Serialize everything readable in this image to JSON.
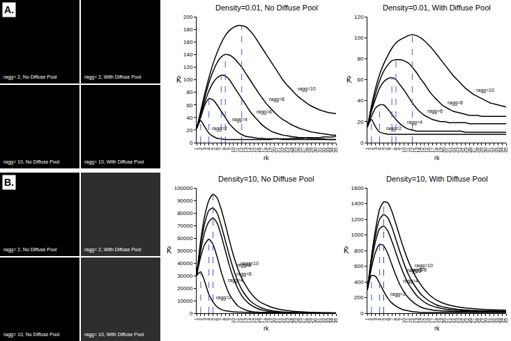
{
  "panels": [
    {
      "label": "A.",
      "image_captions": [
        "ragg= 2, No Diffuse Pool",
        "ragg= 2, With Diffuse Pool",
        "ragg= 10, No Diffuse Pool",
        "ragg= 10, With Diffuse Pool"
      ]
    },
    {
      "label": "B.",
      "image_captions": [
        "ragg= 2, No Diffuse Pool",
        "ragg= 2, With Diffuse Pool",
        "ragg= 10, No Diffuse Pool",
        "ragg= 10, With Diffuse Pool"
      ]
    }
  ],
  "chart_data": [
    {
      "type": "line",
      "title": "Density=0.01, No Diffuse Pool",
      "x_label": "rk",
      "y_label": "K̃",
      "grid": false,
      "x": [
        1,
        2,
        3,
        4,
        5,
        6,
        7,
        8,
        9,
        10,
        11,
        12,
        13,
        14,
        15,
        16,
        17,
        18,
        19,
        20,
        21,
        22,
        23,
        24,
        25,
        26,
        27,
        28,
        29,
        30,
        31,
        32,
        33,
        34,
        35
      ],
      "xlim": [
        1,
        35
      ],
      "xticks": [
        1,
        2,
        3,
        4,
        5,
        6,
        7,
        8,
        9,
        10,
        11,
        12,
        13,
        14,
        15,
        16,
        17,
        18,
        19,
        20,
        21,
        22,
        23,
        24,
        25,
        26,
        27,
        28,
        29,
        30,
        31,
        32,
        33,
        34,
        35
      ],
      "ylim": [
        0,
        200
      ],
      "yticks": [
        0,
        20,
        40,
        60,
        80,
        100,
        120,
        140,
        160,
        180,
        200
      ],
      "series": [
        {
          "name": "ragg=2",
          "color": "#000000",
          "peak": 2,
          "values": [
            22,
            35,
            25,
            15,
            10,
            7,
            6,
            5,
            5,
            5,
            5,
            5,
            5,
            5,
            5,
            5,
            5,
            5,
            5,
            6,
            6,
            6,
            6,
            7,
            7,
            7,
            7,
            8,
            8,
            8,
            8,
            9,
            9,
            9,
            10
          ]
        },
        {
          "name": "ragg=4",
          "color": "#000000",
          "peak": 4,
          "values": [
            22,
            40,
            60,
            70,
            68,
            60,
            50,
            40,
            30,
            23,
            17,
            13,
            10,
            9,
            8,
            7,
            7,
            6,
            6,
            6,
            6,
            5,
            5,
            5,
            5,
            5,
            5,
            5,
            5,
            5,
            5,
            5,
            5,
            5,
            5
          ]
        },
        {
          "name": "ragg=6",
          "color": "#000000",
          "peak": 7,
          "values": [
            22,
            45,
            65,
            82,
            95,
            103,
            107,
            106,
            100,
            90,
            80,
            70,
            60,
            50,
            42,
            35,
            28,
            23,
            19,
            16,
            14,
            12,
            11,
            10,
            9,
            8,
            8,
            7,
            7,
            6,
            6,
            6,
            5,
            5,
            5
          ]
        },
        {
          "name": "ragg=8",
          "color": "#000000",
          "peak": 8,
          "values": [
            22,
            48,
            72,
            95,
            113,
            127,
            136,
            140,
            139,
            135,
            128,
            120,
            110,
            100,
            90,
            80,
            71,
            62,
            55,
            48,
            42,
            37,
            33,
            29,
            26,
            23,
            21,
            19,
            17,
            16,
            15,
            14,
            13,
            12,
            12
          ]
        },
        {
          "name": "ragg=10",
          "color": "#000000",
          "peak": 12,
          "values": [
            22,
            50,
            78,
            103,
            125,
            143,
            158,
            170,
            178,
            183,
            186,
            186,
            184,
            178,
            170,
            160,
            150,
            140,
            130,
            120,
            110,
            100,
            92,
            85,
            78,
            72,
            67,
            62,
            58,
            55,
            52,
            50,
            48,
            47,
            46
          ]
        }
      ]
    },
    {
      "type": "line",
      "title": "Density=0.01, With Diffuse Pool",
      "x_label": "rk",
      "y_label": "K̃",
      "grid": false,
      "x": [
        1,
        2,
        3,
        4,
        5,
        6,
        7,
        8,
        9,
        10,
        11,
        12,
        13,
        14,
        15,
        16,
        17,
        18,
        19,
        20,
        21,
        22,
        23,
        24,
        25,
        26,
        27,
        28,
        29,
        30,
        31,
        32,
        33,
        34,
        35
      ],
      "xlim": [
        1,
        35
      ],
      "xticks": [
        1,
        2,
        3,
        4,
        5,
        6,
        7,
        8,
        9,
        10,
        11,
        12,
        13,
        14,
        15,
        16,
        17,
        18,
        19,
        20,
        21,
        22,
        23,
        24,
        25,
        26,
        27,
        28,
        29,
        30,
        31,
        32,
        33,
        34,
        35
      ],
      "ylim": [
        0,
        120
      ],
      "yticks": [
        0,
        20,
        40,
        60,
        80,
        100,
        120
      ],
      "series": [
        {
          "name": "ragg=2",
          "color": "#000000",
          "peak": 2,
          "values": [
            15,
            22,
            15,
            10,
            9,
            8,
            8,
            8,
            8,
            8,
            8,
            8,
            8,
            8,
            8,
            8,
            8,
            8,
            8,
            8,
            8,
            8,
            8,
            8,
            8,
            8,
            8,
            8,
            8,
            8,
            8,
            8,
            8,
            8,
            8
          ]
        },
        {
          "name": "ragg=4",
          "color": "#000000",
          "peak": 4,
          "values": [
            15,
            25,
            33,
            36,
            36,
            32,
            27,
            22,
            18,
            15,
            13,
            12,
            11,
            11,
            11,
            11,
            11,
            11,
            11,
            11,
            11,
            11,
            11,
            11,
            10,
            10,
            10,
            10,
            10,
            10,
            10,
            10,
            10,
            10,
            10
          ]
        },
        {
          "name": "ragg=6",
          "color": "#000000",
          "peak": 7,
          "values": [
            15,
            30,
            42,
            52,
            58,
            61,
            62,
            60,
            55,
            50,
            44,
            38,
            33,
            29,
            26,
            24,
            22,
            21,
            20,
            20,
            19,
            19,
            19,
            19,
            19,
            18,
            18,
            18,
            18,
            18,
            18,
            18,
            18,
            18,
            18
          ]
        },
        {
          "name": "ragg=8",
          "color": "#000000",
          "peak": 8,
          "values": [
            15,
            32,
            47,
            59,
            68,
            74,
            78,
            79,
            79,
            78,
            76,
            72,
            67,
            61,
            56,
            50,
            45,
            41,
            37,
            34,
            32,
            30,
            29,
            28,
            27,
            26,
            26,
            26,
            25,
            25,
            25,
            25,
            25,
            25,
            25
          ]
        },
        {
          "name": "ragg=10",
          "color": "#000000",
          "peak": 12,
          "values": [
            15,
            35,
            52,
            65,
            75,
            83,
            90,
            95,
            98,
            100,
            102,
            103,
            102,
            100,
            97,
            93,
            89,
            84,
            79,
            74,
            69,
            64,
            60,
            56,
            52,
            49,
            46,
            44,
            42,
            40,
            38,
            37,
            36,
            35,
            34
          ]
        }
      ]
    },
    {
      "type": "line",
      "title": "Density=10, No Diffuse Pool",
      "x_label": "rk",
      "y_label": "K̃",
      "grid": false,
      "x": [
        1,
        2,
        3,
        4,
        5,
        6,
        7,
        8,
        9,
        10,
        11,
        12,
        13,
        14,
        15,
        16,
        17,
        18,
        19,
        20,
        21,
        22,
        23,
        24,
        25,
        26,
        27,
        28,
        29,
        30,
        31,
        32,
        33,
        34,
        35
      ],
      "xlim": [
        1,
        35
      ],
      "xticks": [
        1,
        2,
        3,
        4,
        5,
        6,
        7,
        8,
        9,
        10,
        11,
        12,
        13,
        14,
        15,
        16,
        17,
        18,
        19,
        20,
        21,
        22,
        23,
        24,
        25,
        26,
        27,
        28,
        29,
        30,
        31,
        32,
        33,
        34,
        35
      ],
      "ylim": [
        0,
        100000
      ],
      "yticks": [
        0,
        10000,
        20000,
        30000,
        40000,
        50000,
        60000,
        70000,
        80000,
        90000,
        100000
      ],
      "series": [
        {
          "name": "ragg=2",
          "color": "#000000",
          "peak": 2,
          "values": [
            30000,
            33000,
            25000,
            15000,
            9000,
            5000,
            3000,
            2000,
            1500,
            1000,
            900,
            800,
            700,
            600,
            500,
            500,
            400,
            400,
            300,
            300,
            300,
            200,
            200,
            200,
            200,
            200,
            100,
            100,
            100,
            100,
            100,
            100,
            100,
            100,
            100
          ]
        },
        {
          "name": "ragg=4",
          "color": "#000000",
          "peak": 4,
          "values": [
            30000,
            45000,
            55000,
            59000,
            55000,
            45000,
            33000,
            23000,
            15000,
            10000,
            6000,
            4000,
            2500,
            1500,
            1000,
            800,
            600,
            500,
            400,
            300,
            300,
            200,
            200,
            200,
            200,
            200,
            100,
            100,
            100,
            100,
            100,
            100,
            100,
            100,
            100
          ]
        },
        {
          "name": "ragg=6",
          "color": "#000000",
          "peak": 5,
          "values": [
            30000,
            50000,
            65000,
            73000,
            76000,
            72000,
            62000,
            50000,
            38000,
            28000,
            20000,
            14000,
            10000,
            7000,
            5000,
            3500,
            2500,
            1800,
            1300,
            1000,
            800,
            600,
            500,
            400,
            300,
            300,
            200,
            200,
            200,
            200,
            100,
            100,
            100,
            100,
            100
          ]
        },
        {
          "name": "ragg=8",
          "color": "#000000",
          "peak": 5,
          "values": [
            30000,
            55000,
            72000,
            82000,
            84000,
            80000,
            70000,
            58000,
            46000,
            35000,
            26000,
            19000,
            14000,
            10000,
            7500,
            5500,
            4000,
            3000,
            2200,
            1700,
            1300,
            1000,
            800,
            600,
            500,
            400,
            300,
            300,
            200,
            200,
            200,
            200,
            100,
            100,
            100
          ]
        },
        {
          "name": "ragg=10",
          "color": "#000000",
          "peak": 5,
          "values": [
            30000,
            58000,
            78000,
            90000,
            95000,
            92000,
            83000,
            71000,
            58000,
            46000,
            36000,
            28000,
            22000,
            17000,
            13000,
            10000,
            8000,
            6500,
            5000,
            4000,
            3200,
            2600,
            2100,
            1700,
            1400,
            1200,
            1000,
            800,
            700,
            600,
            500,
            400,
            400,
            300,
            300
          ]
        }
      ]
    },
    {
      "type": "line",
      "title": "Density=10, With Diffuse Pool",
      "x_label": "rk",
      "y_label": "K̃",
      "grid": false,
      "x": [
        1,
        2,
        3,
        4,
        5,
        6,
        7,
        8,
        9,
        10,
        11,
        12,
        13,
        14,
        15,
        16,
        17,
        18,
        19,
        20,
        21,
        22,
        23,
        24,
        25,
        26,
        27,
        28,
        29,
        30,
        31,
        32,
        33,
        34,
        35
      ],
      "xlim": [
        1,
        35
      ],
      "xticks": [
        1,
        2,
        3,
        4,
        5,
        6,
        7,
        8,
        9,
        10,
        11,
        12,
        13,
        14,
        15,
        16,
        17,
        18,
        19,
        20,
        21,
        22,
        23,
        24,
        25,
        26,
        27,
        28,
        29,
        30,
        31,
        32,
        33,
        34,
        35
      ],
      "ylim": [
        0,
        1600
      ],
      "yticks": [
        0,
        200,
        400,
        600,
        800,
        1000,
        1200,
        1400,
        1600
      ],
      "series": [
        {
          "name": "ragg=2",
          "color": "#000000",
          "peak": 2,
          "values": [
            300,
            480,
            470,
            380,
            280,
            190,
            130,
            90,
            60,
            40,
            30,
            20,
            15,
            10,
            10,
            10,
            10,
            10,
            10,
            10,
            10,
            10,
            10,
            10,
            10,
            10,
            10,
            10,
            10,
            10,
            10,
            10,
            10,
            10,
            10
          ]
        },
        {
          "name": "ragg=4",
          "color": "#000000",
          "peak": 4,
          "values": [
            300,
            580,
            780,
            880,
            860,
            760,
            620,
            480,
            360,
            270,
            200,
            150,
            110,
            80,
            60,
            50,
            40,
            35,
            30,
            28,
            25,
            22,
            20,
            20,
            20,
            18,
            18,
            18,
            16,
            16,
            16,
            15,
            15,
            15,
            15
          ]
        },
        {
          "name": "ragg=6",
          "color": "#000000",
          "peak": 5,
          "values": [
            300,
            650,
            920,
            1080,
            1110,
            1050,
            920,
            770,
            620,
            490,
            380,
            300,
            230,
            180,
            140,
            110,
            90,
            75,
            62,
            52,
            45,
            40,
            36,
            33,
            30,
            28,
            26,
            25,
            24,
            23,
            22,
            21,
            20,
            20,
            20
          ]
        },
        {
          "name": "ragg=8",
          "color": "#000000",
          "peak": 5,
          "values": [
            300,
            700,
            1000,
            1200,
            1260,
            1220,
            1100,
            940,
            780,
            630,
            500,
            400,
            320,
            250,
            200,
            160,
            130,
            105,
            88,
            75,
            65,
            57,
            50,
            45,
            41,
            38,
            35,
            33,
            31,
            30,
            29,
            28,
            27,
            26,
            25
          ]
        },
        {
          "name": "ragg=10",
          "color": "#000000",
          "peak": 5,
          "values": [
            300,
            720,
            1070,
            1330,
            1420,
            1410,
            1300,
            1140,
            970,
            810,
            670,
            550,
            450,
            370,
            300,
            245,
            200,
            165,
            140,
            120,
            105,
            92,
            82,
            74,
            67,
            62,
            57,
            53,
            50,
            47,
            45,
            43,
            41,
            40,
            38
          ]
        }
      ]
    }
  ]
}
